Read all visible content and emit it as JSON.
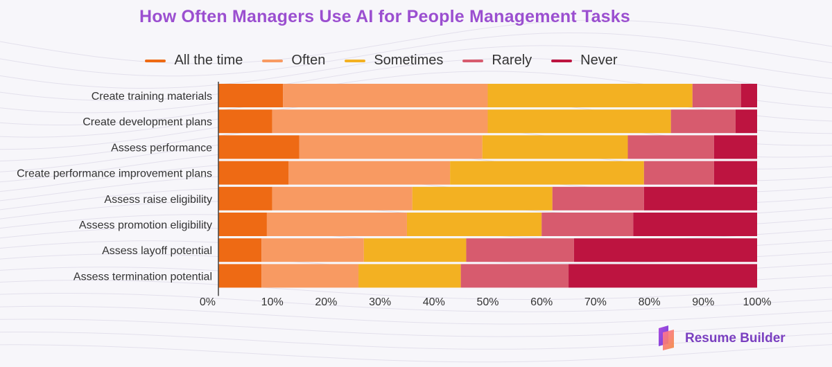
{
  "colors": {
    "background": "#f7f6fa",
    "title": "#9b4fd0",
    "all_the_time": "#ee6a14",
    "often": "#f89a62",
    "sometimes": "#f3b122",
    "rarely": "#d75b6e",
    "never": "#bd1440"
  },
  "brand": {
    "name": "Resume Builder"
  },
  "chart_data": {
    "type": "bar",
    "orientation": "horizontal",
    "stacked": true,
    "title": "How Often Managers Use AI for People Management Tasks",
    "xlabel": "",
    "ylabel": "",
    "xlim": [
      0,
      100
    ],
    "xticks": [
      "0%",
      "10%",
      "20%",
      "30%",
      "40%",
      "50%",
      "60%",
      "70%",
      "80%",
      "90%",
      "100%"
    ],
    "legend_position": "top",
    "categories": [
      "Create training materials",
      "Create development plans",
      "Assess performance",
      "Create performance improvement plans",
      "Assess raise eligibility",
      "Assess promotion eligibility",
      "Assess layoff potential",
      "Assess termination potential"
    ],
    "series": [
      {
        "name": "All the time",
        "color": "#ee6a14",
        "values": [
          12,
          10,
          15,
          13,
          10,
          9,
          8,
          8
        ]
      },
      {
        "name": "Often",
        "color": "#f89a62",
        "values": [
          38,
          40,
          34,
          30,
          26,
          26,
          19,
          18
        ]
      },
      {
        "name": "Sometimes",
        "color": "#f3b122",
        "values": [
          38,
          34,
          27,
          36,
          26,
          25,
          19,
          19
        ]
      },
      {
        "name": "Rarely",
        "color": "#d75b6e",
        "values": [
          9,
          12,
          16,
          13,
          17,
          17,
          20,
          20
        ]
      },
      {
        "name": "Never",
        "color": "#bd1440",
        "values": [
          3,
          4,
          8,
          8,
          21,
          23,
          34,
          35
        ]
      }
    ]
  }
}
